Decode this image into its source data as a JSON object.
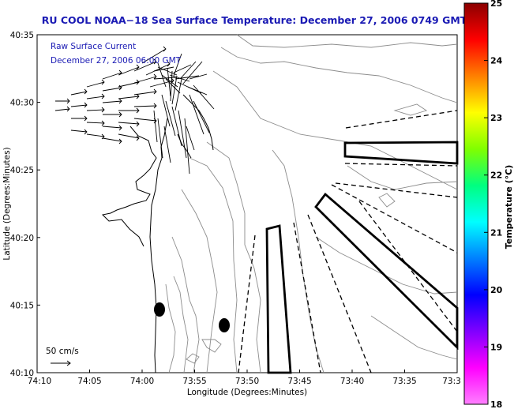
{
  "title": "RU COOL  NOAA−18  Sea Surface Temperature:  December 27, 2006 0749 GMT",
  "overlay": {
    "line1": "Raw Surface Current",
    "line2": "December 27, 2006 06:00 GMT"
  },
  "axes": {
    "xlabel": "Longitude (Degrees:Minutes)",
    "ylabel": "Latitude (Degrees:Minutes)",
    "x_ticks": [
      "74:10",
      "74:05",
      "74:00",
      "73:55",
      "73:50",
      "73:45",
      "73:40",
      "73:35",
      "73:3"
    ],
    "y_ticks": [
      "40:35",
      "40:30",
      "40:25",
      "40:20",
      "40:15",
      "40:10"
    ]
  },
  "scale": {
    "label": "50 cm/s"
  },
  "colorbar": {
    "label": "Temperature (°C)",
    "ticks": [
      "25",
      "24",
      "23",
      "22",
      "21",
      "20",
      "19",
      "18"
    ],
    "colors": [
      "#8b0000",
      "#ff0000",
      "#ff8000",
      "#ffff00",
      "#80ff00",
      "#00ff80",
      "#00ffff",
      "#0080ff",
      "#0000ff",
      "#8000ff",
      "#ff00ff",
      "#ff80ff"
    ]
  },
  "map_features": {
    "coastline": "black",
    "bathymetry_contours": "gray",
    "current_vectors": "black",
    "survey_boxes": "black",
    "ray_lines": "dashed black"
  }
}
